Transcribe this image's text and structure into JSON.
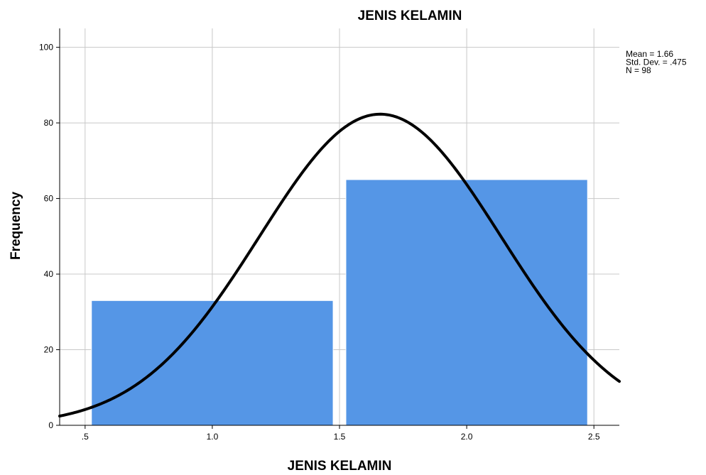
{
  "chart_data": {
    "type": "bar",
    "title": "JENIS KELAMIN",
    "xlabel": "JENIS KELAMIN",
    "ylabel": "Frequency",
    "xlim": [
      0.4,
      2.6
    ],
    "ylim": [
      0,
      105
    ],
    "x_ticks": [
      0.5,
      1.0,
      1.5,
      2.0,
      2.5
    ],
    "x_tick_labels": [
      ".5",
      "1.0",
      "1.5",
      "2.0",
      "2.5"
    ],
    "y_ticks": [
      0,
      20,
      40,
      60,
      80,
      100
    ],
    "y_tick_labels": [
      "0",
      "20",
      "40",
      "60",
      "80",
      "100"
    ],
    "grid": true,
    "bars": [
      {
        "x_start": 0.525,
        "x_end": 1.475,
        "value": 33
      },
      {
        "x_start": 1.525,
        "x_end": 2.475,
        "value": 65
      }
    ],
    "normal_curve": {
      "mean": 1.66,
      "std": 0.475,
      "n": 98,
      "bin_width": 1.0
    },
    "stats_lines": [
      "Mean = 1.66",
      "Std. Dev. = .475",
      "N = 98"
    ],
    "legend_placement": "top-right",
    "colors": {
      "bar": "#5596e6",
      "curve": "#000000",
      "grid": "#c8c8c8"
    }
  }
}
